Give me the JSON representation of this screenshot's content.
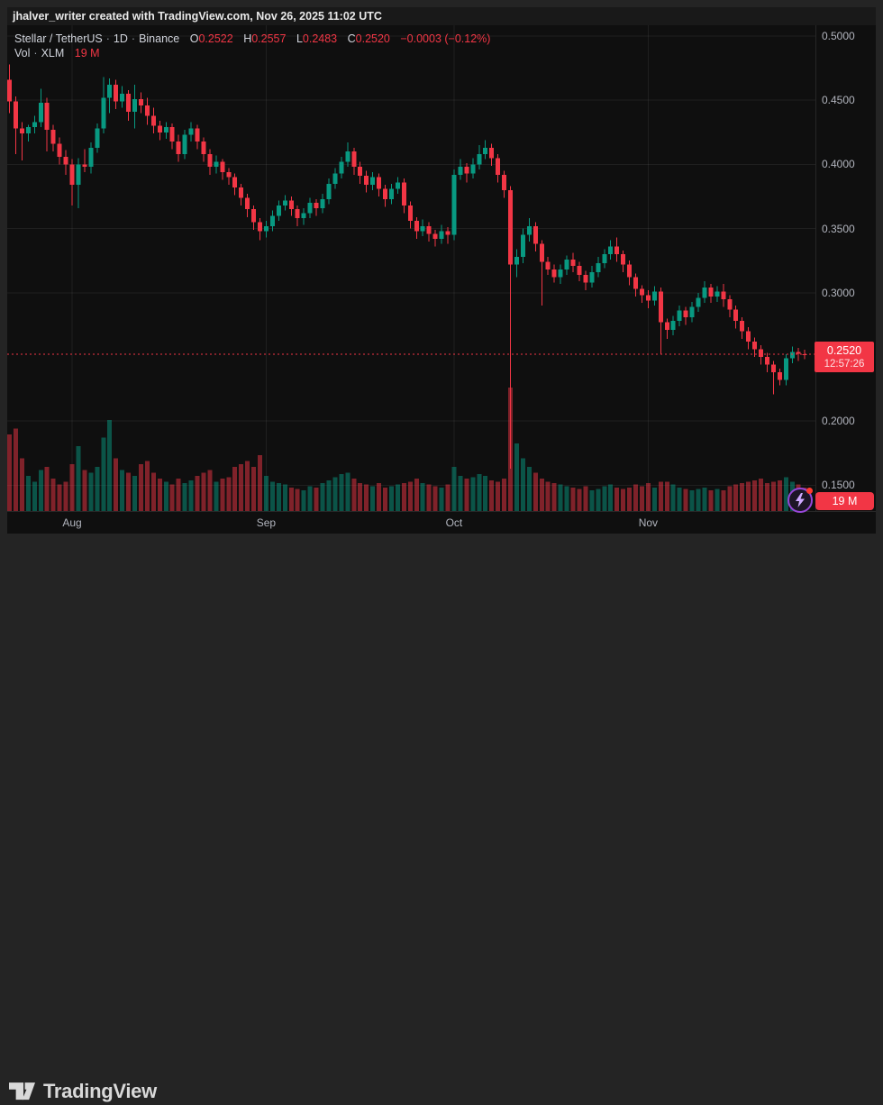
{
  "attribution": "jhalver_writer created with TradingView.com, Nov 26, 2025 11:02 UTC",
  "legend": {
    "symbol": "Stellar / TetherUS",
    "sep": "·",
    "interval": "1D",
    "exchange": "Binance",
    "open_label": "O",
    "open": "0.2522",
    "high_label": "H",
    "high": "0.2557",
    "low_label": "L",
    "low": "0.2483",
    "close_label": "C",
    "close": "0.2520",
    "change": "−0.0003 (−0.12%)",
    "vol_label": "Vol",
    "vol_unit": "XLM",
    "vol_value": "19 M"
  },
  "price_label": {
    "price": "0.2520",
    "countdown": "12:57:26"
  },
  "volume_badge": "19 M",
  "footer": {
    "brand": "TradingView"
  },
  "icons": {
    "bolt": "lightning-bolt",
    "dot": "notification-dot"
  },
  "colors": {
    "up": "#089981",
    "down": "#f23645",
    "grid": "rgba(255,255,255,0.07)",
    "axis_line": "rgba(255,255,255,0.1)",
    "axis_text": "#b2b5be",
    "price_line": "#f23645",
    "bolt": "#cfa9ff",
    "ring": "#9747d8"
  },
  "chart_data": {
    "type": "candlestick",
    "title": "Stellar / TetherUS · 1D · Binance",
    "interval": "1D",
    "start_date": "2025-07-22",
    "current_price": 0.252,
    "current_ohlc": {
      "o": 0.2522,
      "h": 0.2557,
      "l": 0.2483,
      "c": 0.252
    },
    "ylim": [
      0.13,
      0.508
    ],
    "grid": true,
    "price_ticks": [
      {
        "label": "0.5000",
        "value": 0.5
      },
      {
        "label": "0.4500",
        "value": 0.45
      },
      {
        "label": "0.4000",
        "value": 0.4
      },
      {
        "label": "0.3500",
        "value": 0.35
      },
      {
        "label": "0.3000",
        "value": 0.3
      },
      {
        "label": "0.2000",
        "value": 0.2
      },
      {
        "label": "0.1500",
        "value": 0.15
      }
    ],
    "month_ticks": [
      {
        "label": "Aug",
        "index": 10
      },
      {
        "label": "Sep",
        "index": 41
      },
      {
        "label": "Oct",
        "index": 71
      },
      {
        "label": "Nov",
        "index": 102
      }
    ],
    "candles_format": [
      "open",
      "high",
      "low",
      "close",
      "volume_rel"
    ],
    "candles": [
      [
        0.466,
        0.478,
        0.44,
        0.449,
        260
      ],
      [
        0.449,
        0.453,
        0.408,
        0.428,
        280
      ],
      [
        0.428,
        0.433,
        0.403,
        0.424,
        180
      ],
      [
        0.424,
        0.431,
        0.418,
        0.429,
        120
      ],
      [
        0.429,
        0.438,
        0.424,
        0.433,
        100
      ],
      [
        0.433,
        0.459,
        0.429,
        0.448,
        140
      ],
      [
        0.448,
        0.452,
        0.41,
        0.427,
        150
      ],
      [
        0.427,
        0.431,
        0.41,
        0.416,
        110
      ],
      [
        0.416,
        0.421,
        0.4,
        0.406,
        90
      ],
      [
        0.406,
        0.411,
        0.392,
        0.4,
        100
      ],
      [
        0.4,
        0.404,
        0.368,
        0.384,
        160
      ],
      [
        0.384,
        0.405,
        0.366,
        0.4,
        220
      ],
      [
        0.4,
        0.412,
        0.394,
        0.398,
        140
      ],
      [
        0.398,
        0.417,
        0.393,
        0.413,
        130
      ],
      [
        0.413,
        0.432,
        0.409,
        0.428,
        150
      ],
      [
        0.428,
        0.468,
        0.424,
        0.452,
        250
      ],
      [
        0.452,
        0.467,
        0.44,
        0.462,
        310
      ],
      [
        0.462,
        0.466,
        0.443,
        0.449,
        180
      ],
      [
        0.449,
        0.461,
        0.444,
        0.455,
        140
      ],
      [
        0.455,
        0.458,
        0.434,
        0.441,
        130
      ],
      [
        0.441,
        0.462,
        0.428,
        0.451,
        120
      ],
      [
        0.451,
        0.456,
        0.44,
        0.446,
        160
      ],
      [
        0.446,
        0.452,
        0.431,
        0.438,
        170
      ],
      [
        0.438,
        0.444,
        0.424,
        0.43,
        130
      ],
      [
        0.43,
        0.434,
        0.419,
        0.425,
        110
      ],
      [
        0.425,
        0.433,
        0.42,
        0.429,
        100
      ],
      [
        0.429,
        0.432,
        0.412,
        0.418,
        90
      ],
      [
        0.418,
        0.423,
        0.402,
        0.408,
        110
      ],
      [
        0.408,
        0.427,
        0.404,
        0.423,
        95
      ],
      [
        0.423,
        0.433,
        0.418,
        0.428,
        105
      ],
      [
        0.428,
        0.431,
        0.412,
        0.418,
        120
      ],
      [
        0.418,
        0.421,
        0.402,
        0.408,
        130
      ],
      [
        0.408,
        0.412,
        0.392,
        0.398,
        140
      ],
      [
        0.398,
        0.407,
        0.393,
        0.402,
        100
      ],
      [
        0.402,
        0.404,
        0.388,
        0.394,
        110
      ],
      [
        0.394,
        0.397,
        0.384,
        0.39,
        115
      ],
      [
        0.39,
        0.393,
        0.376,
        0.382,
        150
      ],
      [
        0.382,
        0.385,
        0.368,
        0.374,
        160
      ],
      [
        0.374,
        0.377,
        0.359,
        0.365,
        170
      ],
      [
        0.365,
        0.368,
        0.349,
        0.355,
        150
      ],
      [
        0.355,
        0.358,
        0.341,
        0.348,
        190
      ],
      [
        0.348,
        0.356,
        0.343,
        0.352,
        120
      ],
      [
        0.352,
        0.364,
        0.348,
        0.36,
        100
      ],
      [
        0.36,
        0.372,
        0.356,
        0.368,
        95
      ],
      [
        0.368,
        0.376,
        0.364,
        0.372,
        90
      ],
      [
        0.372,
        0.375,
        0.36,
        0.365,
        80
      ],
      [
        0.365,
        0.368,
        0.352,
        0.358,
        75
      ],
      [
        0.358,
        0.366,
        0.353,
        0.362,
        70
      ],
      [
        0.362,
        0.374,
        0.358,
        0.37,
        85
      ],
      [
        0.37,
        0.373,
        0.36,
        0.366,
        80
      ],
      [
        0.366,
        0.377,
        0.362,
        0.373,
        95
      ],
      [
        0.373,
        0.389,
        0.369,
        0.385,
        105
      ],
      [
        0.385,
        0.397,
        0.381,
        0.393,
        115
      ],
      [
        0.393,
        0.406,
        0.389,
        0.402,
        125
      ],
      [
        0.402,
        0.417,
        0.398,
        0.41,
        130
      ],
      [
        0.41,
        0.413,
        0.392,
        0.398,
        110
      ],
      [
        0.398,
        0.402,
        0.385,
        0.391,
        95
      ],
      [
        0.391,
        0.395,
        0.378,
        0.384,
        90
      ],
      [
        0.384,
        0.394,
        0.38,
        0.39,
        85
      ],
      [
        0.39,
        0.393,
        0.375,
        0.381,
        95
      ],
      [
        0.381,
        0.384,
        0.367,
        0.373,
        80
      ],
      [
        0.373,
        0.385,
        0.369,
        0.381,
        85
      ],
      [
        0.381,
        0.39,
        0.377,
        0.386,
        90
      ],
      [
        0.386,
        0.389,
        0.362,
        0.368,
        95
      ],
      [
        0.368,
        0.371,
        0.35,
        0.356,
        100
      ],
      [
        0.356,
        0.359,
        0.342,
        0.348,
        110
      ],
      [
        0.348,
        0.357,
        0.344,
        0.352,
        95
      ],
      [
        0.352,
        0.355,
        0.34,
        0.346,
        90
      ],
      [
        0.346,
        0.349,
        0.336,
        0.342,
        85
      ],
      [
        0.342,
        0.353,
        0.338,
        0.348,
        80
      ],
      [
        0.348,
        0.351,
        0.338,
        0.345,
        90
      ],
      [
        0.345,
        0.396,
        0.341,
        0.392,
        150
      ],
      [
        0.392,
        0.404,
        0.388,
        0.398,
        120
      ],
      [
        0.398,
        0.401,
        0.386,
        0.393,
        110
      ],
      [
        0.393,
        0.405,
        0.389,
        0.4,
        115
      ],
      [
        0.4,
        0.415,
        0.396,
        0.408,
        125
      ],
      [
        0.408,
        0.419,
        0.404,
        0.413,
        120
      ],
      [
        0.413,
        0.416,
        0.399,
        0.405,
        105
      ],
      [
        0.405,
        0.408,
        0.386,
        0.392,
        100
      ],
      [
        0.392,
        0.395,
        0.374,
        0.38,
        110
      ],
      [
        0.38,
        0.383,
        0.163,
        0.322,
        420
      ],
      [
        0.322,
        0.334,
        0.312,
        0.328,
        230
      ],
      [
        0.328,
        0.35,
        0.323,
        0.345,
        180
      ],
      [
        0.345,
        0.358,
        0.34,
        0.352,
        150
      ],
      [
        0.352,
        0.355,
        0.332,
        0.338,
        130
      ],
      [
        0.338,
        0.341,
        0.29,
        0.324,
        110
      ],
      [
        0.324,
        0.328,
        0.314,
        0.318,
        100
      ],
      [
        0.318,
        0.322,
        0.308,
        0.312,
        95
      ],
      [
        0.312,
        0.322,
        0.307,
        0.318,
        90
      ],
      [
        0.318,
        0.329,
        0.314,
        0.326,
        85
      ],
      [
        0.326,
        0.331,
        0.316,
        0.321,
        80
      ],
      [
        0.321,
        0.324,
        0.309,
        0.314,
        75
      ],
      [
        0.314,
        0.317,
        0.302,
        0.308,
        85
      ],
      [
        0.308,
        0.321,
        0.304,
        0.316,
        70
      ],
      [
        0.316,
        0.328,
        0.312,
        0.323,
        75
      ],
      [
        0.323,
        0.334,
        0.319,
        0.33,
        85
      ],
      [
        0.33,
        0.341,
        0.326,
        0.336,
        90
      ],
      [
        0.336,
        0.343,
        0.324,
        0.33,
        80
      ],
      [
        0.33,
        0.333,
        0.316,
        0.322,
        75
      ],
      [
        0.322,
        0.325,
        0.306,
        0.312,
        80
      ],
      [
        0.312,
        0.315,
        0.297,
        0.303,
        90
      ],
      [
        0.303,
        0.306,
        0.292,
        0.298,
        85
      ],
      [
        0.298,
        0.302,
        0.288,
        0.294,
        95
      ],
      [
        0.294,
        0.305,
        0.29,
        0.301,
        80
      ],
      [
        0.301,
        0.304,
        0.252,
        0.277,
        100
      ],
      [
        0.277,
        0.28,
        0.264,
        0.271,
        100
      ],
      [
        0.271,
        0.282,
        0.267,
        0.278,
        90
      ],
      [
        0.278,
        0.29,
        0.274,
        0.286,
        80
      ],
      [
        0.286,
        0.289,
        0.275,
        0.281,
        75
      ],
      [
        0.281,
        0.293,
        0.277,
        0.289,
        70
      ],
      [
        0.289,
        0.3,
        0.285,
        0.296,
        75
      ],
      [
        0.296,
        0.309,
        0.292,
        0.304,
        80
      ],
      [
        0.304,
        0.307,
        0.292,
        0.297,
        70
      ],
      [
        0.297,
        0.305,
        0.293,
        0.301,
        75
      ],
      [
        0.301,
        0.307,
        0.289,
        0.295,
        70
      ],
      [
        0.295,
        0.298,
        0.281,
        0.287,
        85
      ],
      [
        0.287,
        0.29,
        0.272,
        0.278,
        90
      ],
      [
        0.278,
        0.281,
        0.264,
        0.27,
        95
      ],
      [
        0.27,
        0.273,
        0.256,
        0.262,
        100
      ],
      [
        0.262,
        0.265,
        0.25,
        0.256,
        105
      ],
      [
        0.256,
        0.259,
        0.244,
        0.25,
        110
      ],
      [
        0.25,
        0.253,
        0.238,
        0.244,
        95
      ],
      [
        0.244,
        0.247,
        0.221,
        0.238,
        100
      ],
      [
        0.238,
        0.241,
        0.228,
        0.232,
        105
      ],
      [
        0.232,
        0.252,
        0.228,
        0.249,
        115
      ],
      [
        0.249,
        0.258,
        0.245,
        0.254,
        100
      ],
      [
        0.254,
        0.257,
        0.247,
        0.2525,
        90
      ],
      [
        0.2522,
        0.2557,
        0.2483,
        0.252,
        80
      ]
    ]
  }
}
